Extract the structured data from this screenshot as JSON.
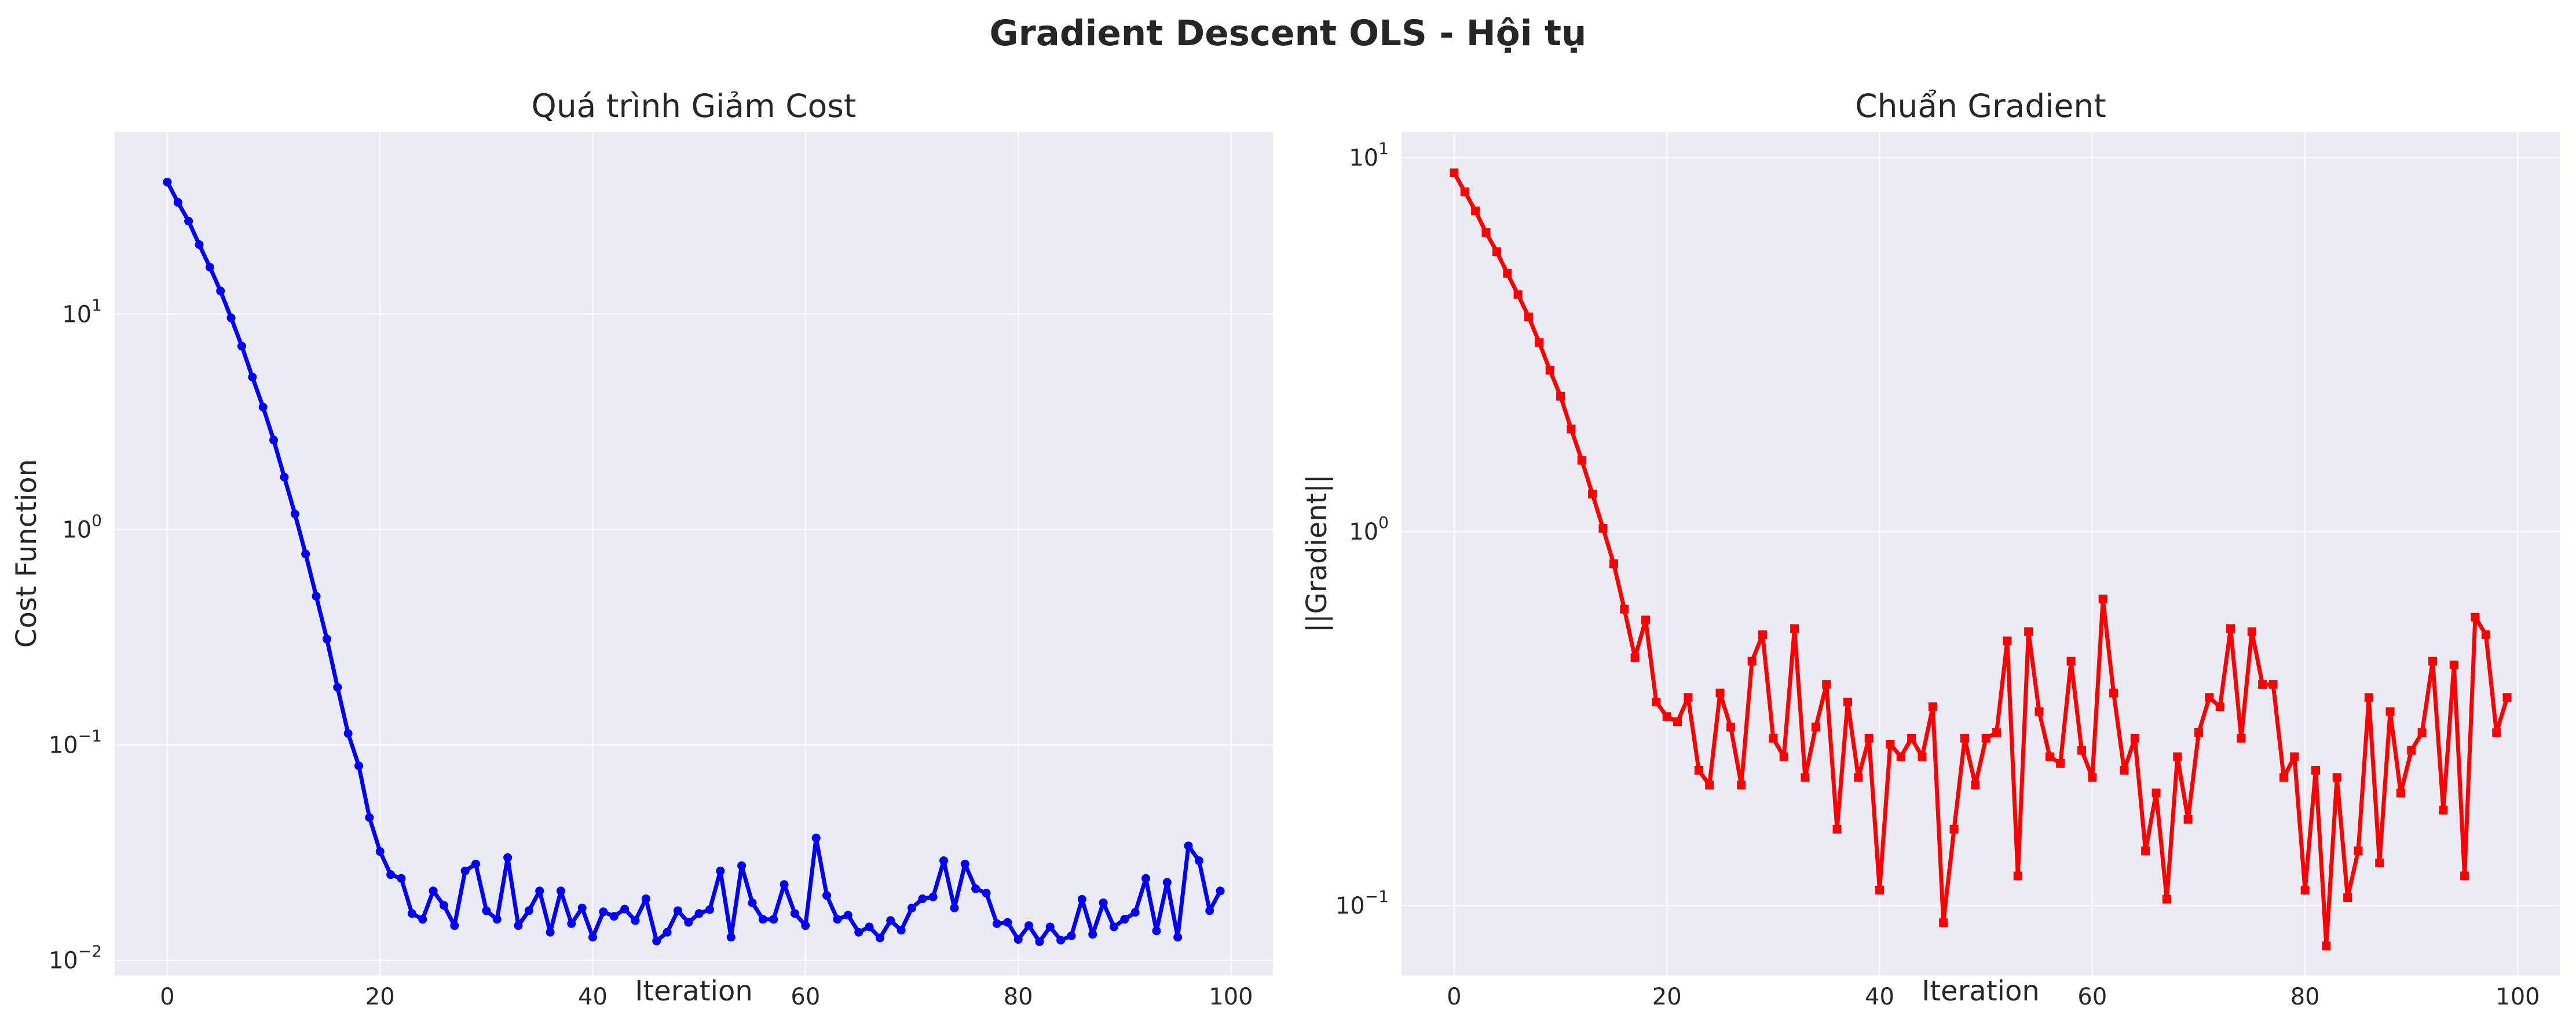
{
  "figure": {
    "suptitle": "Gradient Descent OLS - Hội tụ"
  },
  "chart_data": [
    {
      "type": "line",
      "title": "Quá trình Giảm Cost",
      "xlabel": "Iteration",
      "ylabel": "Cost Function",
      "yscale": "log",
      "xlim": [
        -4.95,
        103.95
      ],
      "ylim": [
        0.0085,
        70
      ],
      "xticks": [
        0,
        20,
        40,
        60,
        80,
        100
      ],
      "yticks": [
        {
          "value": 0.01,
          "base": "10",
          "exp": "−2"
        },
        {
          "value": 0.1,
          "base": "10",
          "exp": "−1"
        },
        {
          "value": 1,
          "base": "10",
          "exp": "0"
        },
        {
          "value": 10,
          "base": "10",
          "exp": "1"
        }
      ],
      "grid": true,
      "series": [
        {
          "color": "#0000ff",
          "marker": "circle",
          "x": [
            0,
            1,
            2,
            3,
            4,
            5,
            6,
            7,
            8,
            9,
            10,
            11,
            12,
            13,
            14,
            15,
            16,
            17,
            18,
            19,
            20,
            21,
            22,
            23,
            24,
            25,
            26,
            27,
            28,
            29,
            30,
            31,
            32,
            33,
            34,
            35,
            36,
            37,
            38,
            39,
            40,
            41,
            42,
            43,
            44,
            45,
            46,
            47,
            48,
            49,
            50,
            51,
            52,
            53,
            54,
            55,
            56,
            57,
            58,
            59,
            60,
            61,
            62,
            63,
            64,
            65,
            66,
            67,
            68,
            69,
            70,
            71,
            72,
            73,
            74,
            75,
            76,
            77,
            78,
            79,
            80,
            81,
            82,
            83,
            84,
            85,
            86,
            87,
            88,
            89,
            90,
            91,
            92,
            93,
            94,
            95,
            96,
            97,
            98,
            99
          ],
          "values": [
            41,
            33,
            27,
            21,
            16.5,
            12.8,
            9.6,
            7.1,
            5.1,
            3.7,
            2.6,
            1.75,
            1.18,
            0.77,
            0.49,
            0.31,
            0.185,
            0.113,
            0.08,
            0.046,
            0.032,
            0.025,
            0.024,
            0.0165,
            0.0155,
            0.021,
            0.018,
            0.0145,
            0.026,
            0.028,
            0.017,
            0.0155,
            0.03,
            0.0145,
            0.017,
            0.021,
            0.0135,
            0.021,
            0.0148,
            0.0175,
            0.0128,
            0.0168,
            0.016,
            0.0173,
            0.0153,
            0.0193,
            0.0123,
            0.0135,
            0.017,
            0.015,
            0.0165,
            0.0172,
            0.026,
            0.0128,
            0.0275,
            0.0185,
            0.0155,
            0.0155,
            0.0225,
            0.0165,
            0.0145,
            0.037,
            0.02,
            0.0155,
            0.0162,
            0.0135,
            0.0143,
            0.0127,
            0.0153,
            0.0138,
            0.0175,
            0.0193,
            0.0197,
            0.029,
            0.0175,
            0.028,
            0.0215,
            0.0205,
            0.0148,
            0.015,
            0.0125,
            0.0145,
            0.0122,
            0.0143,
            0.0124,
            0.013,
            0.0192,
            0.0132,
            0.0185,
            0.0143,
            0.0155,
            0.0167,
            0.024,
            0.0137,
            0.023,
            0.0128,
            0.034,
            0.029,
            0.017,
            0.021
          ]
        }
      ]
    },
    {
      "type": "line",
      "title": "Chuẩn Gradient",
      "xlabel": "Iteration",
      "ylabel": "||Gradient||",
      "yscale": "log",
      "xlim": [
        -4.95,
        103.95
      ],
      "ylim": [
        0.065,
        11.7
      ],
      "xticks": [
        0,
        20,
        40,
        60,
        80,
        100
      ],
      "yticks": [
        {
          "value": 0.1,
          "base": "10",
          "exp": "−1"
        },
        {
          "value": 1,
          "base": "10",
          "exp": "0"
        },
        {
          "value": 10,
          "base": "10",
          "exp": "1"
        }
      ],
      "grid": true,
      "series": [
        {
          "color": "#ff0000",
          "marker": "square",
          "x": [
            0,
            1,
            2,
            3,
            4,
            5,
            6,
            7,
            8,
            9,
            10,
            11,
            12,
            13,
            14,
            15,
            16,
            17,
            18,
            19,
            20,
            21,
            22,
            23,
            24,
            25,
            26,
            27,
            28,
            29,
            30,
            31,
            32,
            33,
            34,
            35,
            36,
            37,
            38,
            39,
            40,
            41,
            42,
            43,
            44,
            45,
            46,
            47,
            48,
            49,
            50,
            51,
            52,
            53,
            54,
            55,
            56,
            57,
            58,
            59,
            60,
            61,
            62,
            63,
            64,
            65,
            66,
            67,
            68,
            69,
            70,
            71,
            72,
            73,
            74,
            75,
            76,
            77,
            78,
            79,
            80,
            81,
            82,
            83,
            84,
            85,
            86,
            87,
            88,
            89,
            90,
            91,
            92,
            93,
            94,
            95,
            96,
            97,
            98,
            99
          ],
          "values": [
            9.1,
            8.1,
            7.2,
            6.3,
            5.6,
            4.9,
            4.3,
            3.75,
            3.2,
            2.7,
            2.3,
            1.88,
            1.55,
            1.26,
            1.02,
            0.82,
            0.62,
            0.46,
            0.58,
            0.35,
            0.32,
            0.31,
            0.36,
            0.23,
            0.21,
            0.37,
            0.3,
            0.21,
            0.45,
            0.53,
            0.28,
            0.25,
            0.55,
            0.22,
            0.3,
            0.39,
            0.16,
            0.35,
            0.22,
            0.28,
            0.11,
            0.27,
            0.25,
            0.28,
            0.25,
            0.34,
            0.09,
            0.16,
            0.28,
            0.21,
            0.28,
            0.29,
            0.51,
            0.12,
            0.54,
            0.33,
            0.25,
            0.24,
            0.45,
            0.26,
            0.22,
            0.66,
            0.37,
            0.23,
            0.28,
            0.14,
            0.2,
            0.104,
            0.25,
            0.17,
            0.29,
            0.36,
            0.34,
            0.55,
            0.28,
            0.54,
            0.39,
            0.39,
            0.22,
            0.25,
            0.11,
            0.23,
            0.078,
            0.22,
            0.105,
            0.14,
            0.36,
            0.13,
            0.33,
            0.2,
            0.26,
            0.29,
            0.45,
            0.18,
            0.44,
            0.12,
            0.59,
            0.53,
            0.29,
            0.36
          ]
        }
      ]
    }
  ]
}
